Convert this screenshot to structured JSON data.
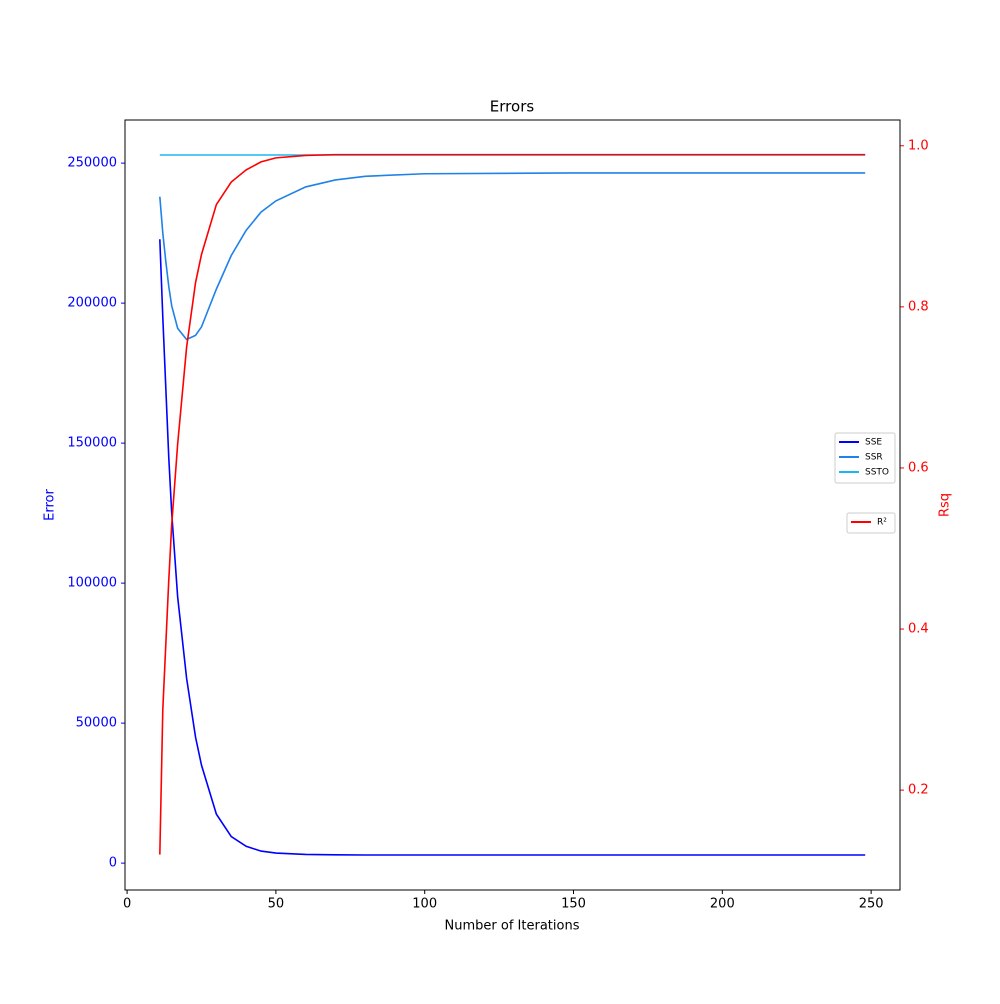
{
  "chart_data": {
    "type": "line",
    "title": "Errors",
    "xlabel": "Number of Iterations",
    "ylabel": "Error",
    "y2label": "Rsq",
    "y_color": "#0000ff",
    "y2_color": "#ff0000",
    "x": [
      11,
      12,
      13,
      14,
      15,
      17,
      20,
      23,
      25,
      30,
      35,
      40,
      45,
      50,
      60,
      70,
      80,
      100,
      150,
      200,
      248
    ],
    "series": [
      {
        "name": "SSE",
        "color": "#0000ff",
        "values": [
          222800,
          195000,
          170000,
          145000,
          125000,
          95000,
          66000,
          45000,
          35000,
          17500,
          9500,
          6000,
          4300,
          3600,
          3100,
          2950,
          2900,
          2900,
          2900,
          2900,
          2900
        ]
      },
      {
        "name": "SSR",
        "color": "#1e82e8",
        "values": [
          238000,
          225000,
          215000,
          206000,
          199000,
          191000,
          187000,
          188500,
          191500,
          205000,
          217000,
          226000,
          232500,
          236500,
          241500,
          244000,
          245300,
          246200,
          246500,
          246500,
          246500
        ]
      },
      {
        "name": "SSTO",
        "color": "#1ab8f0",
        "values": [
          252900,
          252900,
          252900,
          252900,
          252900,
          252900,
          252900,
          252900,
          252900,
          252900,
          252900,
          252900,
          252900,
          252900,
          252900,
          252900,
          252900,
          252900,
          252900,
          252900,
          252900
        ]
      },
      {
        "name": "R²",
        "color": "#ff0000",
        "axis": "y2",
        "values": [
          0.12,
          0.3,
          0.38,
          0.46,
          0.53,
          0.63,
          0.75,
          0.83,
          0.865,
          0.927,
          0.955,
          0.97,
          0.98,
          0.985,
          0.988,
          0.989,
          0.989,
          0.989,
          0.989,
          0.989,
          0.989
        ]
      }
    ],
    "xlim": [
      -0.7,
      259.7
    ],
    "xticks": [
      0,
      50,
      100,
      150,
      200,
      250
    ],
    "ylim": [
      -9600,
      265400
    ],
    "yticks": [
      0,
      50000,
      100000,
      150000,
      200000,
      250000
    ],
    "y2lim": [
      0.076,
      1.032
    ],
    "y2ticks": [
      0.2,
      0.4,
      0.6,
      0.8,
      {
        "value": 1,
        "label": "1.0"
      }
    ]
  }
}
